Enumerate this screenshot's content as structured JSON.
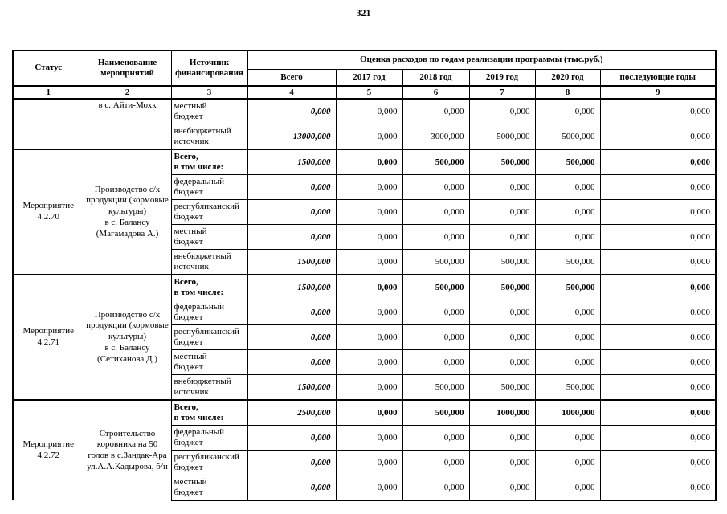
{
  "page": {
    "number": "321"
  },
  "table": {
    "header": {
      "col_status": "Статус",
      "col_name": "Наименование\nмероприятий",
      "col_source": "Источник\nфинансирования",
      "col_group": "Оценка расходов по годам реализации  программы (тыс.руб.)",
      "sub_cols": [
        "Всего",
        "2017 год",
        "2018 год",
        "2019 год",
        "2020 год",
        "последующие годы"
      ],
      "number_row": [
        "1",
        "2",
        "3",
        "4",
        "5",
        "6",
        "7",
        "8",
        "9"
      ]
    },
    "groups": [
      {
        "status": "",
        "name": "в с. Айти-Мохк",
        "rows": [
          {
            "source": "местный\nбюджет",
            "bold": false,
            "values": [
              "0,000",
              "0,000",
              "0,000",
              "0,000",
              "0,000",
              "0,000"
            ]
          },
          {
            "source": "внебюджетный\nисточник",
            "bold": false,
            "values": [
              "13000,000",
              "0,000",
              "3000,000",
              "5000,000",
              "5000,000",
              "0,000"
            ]
          }
        ]
      },
      {
        "status": "Мероприятие\n4.2.70",
        "name": "Производство с/х\nпродукции (кормовые\nкультуры)\nв с. Балансу\n(Магамадова А.)",
        "rows": [
          {
            "source": "Всего,\nв том числе:",
            "bold": true,
            "values": [
              "1500,000",
              "0,000",
              "500,000",
              "500,000",
              "500,000",
              "0,000"
            ]
          },
          {
            "source": "федеральный\nбюджет",
            "bold": false,
            "values": [
              "0,000",
              "0,000",
              "0,000",
              "0,000",
              "0,000",
              "0,000"
            ]
          },
          {
            "source": "республиканский\nбюджет",
            "bold": false,
            "values": [
              "0,000",
              "0,000",
              "0,000",
              "0,000",
              "0,000",
              "0,000"
            ]
          },
          {
            "source": "местный\nбюджет",
            "bold": false,
            "values": [
              "0,000",
              "0,000",
              "0,000",
              "0,000",
              "0,000",
              "0,000"
            ]
          },
          {
            "source": "внебюджетный\nисточник",
            "bold": false,
            "values": [
              "1500,000",
              "0,000",
              "500,000",
              "500,000",
              "500,000",
              "0,000"
            ]
          }
        ]
      },
      {
        "status": "Мероприятие\n4.2.71",
        "name": "Производство с/х\nпродукции (кормовые\nкультуры)\nв с. Балансу\n(Сетиханова Д.)",
        "rows": [
          {
            "source": "Всего,\nв том числе:",
            "bold": true,
            "values": [
              "1500,000",
              "0,000",
              "500,000",
              "500,000",
              "500,000",
              "0,000"
            ]
          },
          {
            "source": "федеральный\nбюджет",
            "bold": false,
            "values": [
              "0,000",
              "0,000",
              "0,000",
              "0,000",
              "0,000",
              "0,000"
            ]
          },
          {
            "source": "республиканский\nбюджет",
            "bold": false,
            "values": [
              "0,000",
              "0,000",
              "0,000",
              "0,000",
              "0,000",
              "0,000"
            ]
          },
          {
            "source": "местный\nбюджет",
            "bold": false,
            "values": [
              "0,000",
              "0,000",
              "0,000",
              "0,000",
              "0,000",
              "0,000"
            ]
          },
          {
            "source": "внебюджетный\nисточник",
            "bold": false,
            "values": [
              "1500,000",
              "0,000",
              "500,000",
              "500,000",
              "500,000",
              "0,000"
            ]
          }
        ]
      },
      {
        "status": "Мероприятие\n4.2.72",
        "name": "Строительство\nкоровника на 50\nголов в с.Зандак-Ара\nул.А.А.Кадырова, б/н",
        "rows": [
          {
            "source": "Всего,\nв том числе:",
            "bold": true,
            "values": [
              "2500,000",
              "0,000",
              "500,000",
              "1000,000",
              "1000,000",
              "0,000"
            ]
          },
          {
            "source": "федеральный\nбюджет",
            "bold": false,
            "values": [
              "0,000",
              "0,000",
              "0,000",
              "0,000",
              "0,000",
              "0,000"
            ]
          },
          {
            "source": "республиканский\nбюджет",
            "bold": false,
            "values": [
              "0,000",
              "0,000",
              "0,000",
              "0,000",
              "0,000",
              "0,000"
            ]
          },
          {
            "source": "местный\nбюджет",
            "bold": false,
            "values": [
              "0,000",
              "0,000",
              "0,000",
              "0,000",
              "0,000",
              "0,000"
            ]
          }
        ]
      }
    ]
  }
}
